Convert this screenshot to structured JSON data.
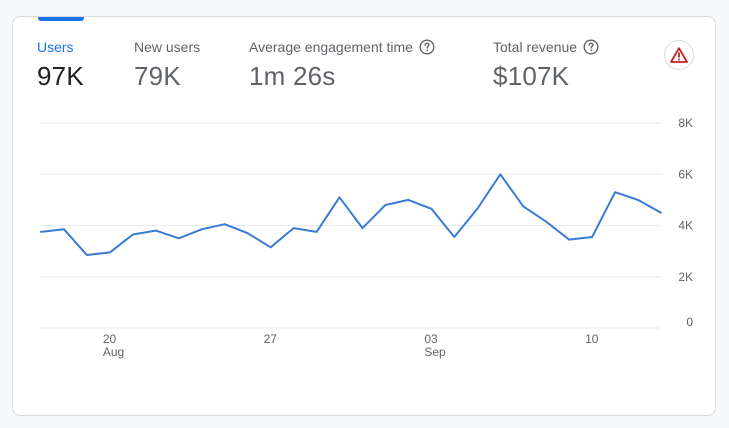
{
  "metrics": [
    {
      "label": "Users",
      "value": "97K"
    },
    {
      "label": "New users",
      "value": "79K"
    },
    {
      "label": "Average engagement time",
      "value": "1m 26s"
    },
    {
      "label": "Total revenue",
      "value": "$107K"
    }
  ],
  "icons": {
    "help": "help-circle-icon",
    "warning": "warning-triangle-icon"
  },
  "colors": {
    "accent": "#1a73e8",
    "line": "#3b7bd4",
    "warning": "#c5221f"
  },
  "chart_data": {
    "type": "line",
    "series": [
      {
        "values": [
          3750,
          3850,
          2850,
          2950,
          3650,
          3800,
          3500,
          3850,
          4050,
          3700,
          3150,
          3900,
          3750,
          5100,
          3900,
          4800,
          5000,
          4650,
          3550,
          4650,
          6000,
          4750,
          4150,
          3450,
          3550,
          5300,
          5000,
          4500
        ]
      }
    ],
    "x_tick_labels": [
      {
        "day": "20",
        "month": "Aug",
        "index": 3
      },
      {
        "day": "27",
        "month": "",
        "index": 10
      },
      {
        "day": "03",
        "month": "Sep",
        "index": 17
      },
      {
        "day": "10",
        "month": "",
        "index": 24
      }
    ],
    "y_tick_labels": [
      "0",
      "2K",
      "4K",
      "6K",
      "8K"
    ],
    "y_ticks": [
      0,
      2000,
      4000,
      6000,
      8000
    ],
    "ylim": [
      0,
      8000
    ],
    "grid": true
  }
}
